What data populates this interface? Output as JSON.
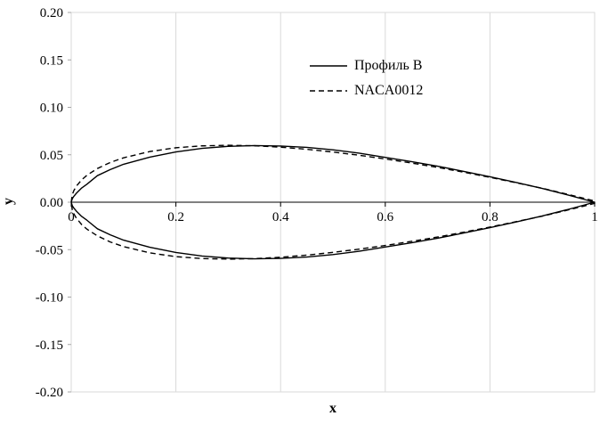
{
  "chart_data": {
    "type": "line",
    "title": "",
    "xlabel": "x",
    "ylabel": "y",
    "xlim": [
      0,
      1
    ],
    "ylim": [
      -0.2,
      0.2
    ],
    "x_ticks": {
      "values": [
        0,
        0.2,
        0.4,
        0.6,
        0.8,
        1
      ],
      "labels": [
        "0",
        "0.2",
        "0.4",
        "0.6",
        "0.8",
        "1"
      ]
    },
    "y_ticks": {
      "values": [
        0.2,
        0.15,
        0.1,
        0.05,
        0,
        -0.05,
        -0.1,
        -0.15,
        -0.2
      ],
      "labels": [
        "0.20",
        "0.15",
        "0.10",
        "0.05",
        "0.00",
        "-0.05",
        "-0.10",
        "-0.15",
        "-0.20"
      ]
    },
    "grid": {
      "vertical": true,
      "horizontal": false
    },
    "legend": {
      "position": "inside-upper-center"
    },
    "colors": {
      "gridline": "#d9d9d9",
      "frame": "#d9d9d9",
      "minor_tick": "#a6a6a6",
      "axis": "#000000",
      "curve": "#000000",
      "text": "#000000"
    },
    "series": [
      {
        "name": "Профиль В",
        "line_style": "solid",
        "symmetric": true,
        "x": [
          0,
          0.002,
          0.005,
          0.01,
          0.02,
          0.03,
          0.05,
          0.075,
          0.1,
          0.15,
          0.2,
          0.25,
          0.3,
          0.35,
          0.4,
          0.45,
          0.5,
          0.55,
          0.6,
          0.65,
          0.7,
          0.75,
          0.8,
          0.85,
          0.9,
          0.95,
          1
        ],
        "y_upper": [
          0,
          0.0036,
          0.0062,
          0.0095,
          0.015,
          0.019,
          0.028,
          0.0345,
          0.04,
          0.0475,
          0.053,
          0.0567,
          0.0589,
          0.0597,
          0.0592,
          0.0578,
          0.0552,
          0.0517,
          0.0472,
          0.0428,
          0.038,
          0.0325,
          0.0268,
          0.0208,
          0.0145,
          0.0075,
          0
        ]
      },
      {
        "name": "NACA0012",
        "line_style": "dashed",
        "symmetric": true,
        "x": [
          0,
          0.002,
          0.005,
          0.01,
          0.02,
          0.03,
          0.05,
          0.075,
          0.1,
          0.15,
          0.2,
          0.25,
          0.3,
          0.35,
          0.4,
          0.45,
          0.5,
          0.55,
          0.6,
          0.65,
          0.7,
          0.75,
          0.8,
          0.85,
          0.9,
          0.95,
          1
        ],
        "y_upper": [
          0,
          0.0078,
          0.0122,
          0.017,
          0.0236,
          0.0284,
          0.0355,
          0.042,
          0.0468,
          0.0534,
          0.0574,
          0.0594,
          0.06,
          0.0595,
          0.058,
          0.0558,
          0.0529,
          0.0495,
          0.0456,
          0.0413,
          0.0367,
          0.0316,
          0.0262,
          0.0205,
          0.0147,
          0.0081,
          0.0013
        ]
      }
    ]
  }
}
